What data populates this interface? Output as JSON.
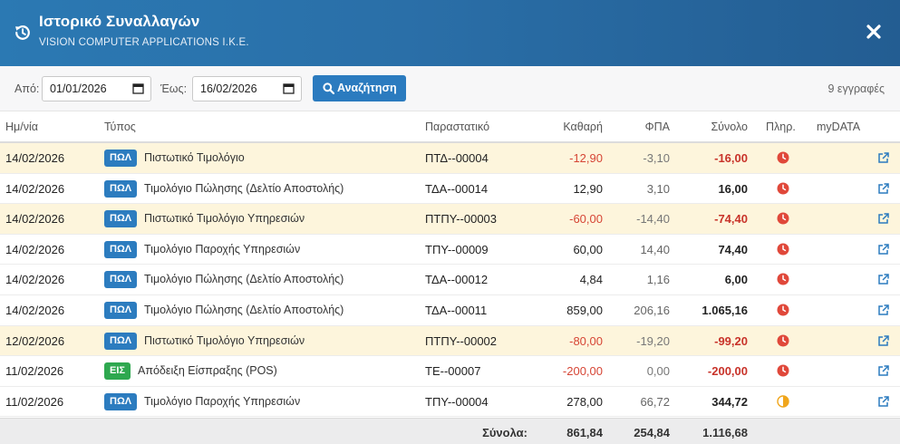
{
  "header": {
    "title": "Ιστορικό Συναλλαγών",
    "subtitle": "VISION COMPUTER APPLICATIONS I.K.E.",
    "icon": "history-icon",
    "close_icon": "close-icon"
  },
  "filters": {
    "from_label": "Από:",
    "from_value": "01/01/2026",
    "to_label": "Έως:",
    "to_value": "16/02/2026",
    "search_label": "Αναζήτηση",
    "records_count": "9 εγγραφές"
  },
  "columns": {
    "date": "Ημ/νία",
    "type": "Τύπος",
    "document": "Παραστατικό",
    "net": "Καθαρή",
    "vat": "ΦΠΑ",
    "total": "Σύνολο",
    "payment": "Πληρ.",
    "mydata": "myDATA"
  },
  "rows": [
    {
      "date": "14/02/2026",
      "badge": "ΠΩΛ",
      "type": "Πιστωτικό Τιμολόγιο",
      "document": "ΠΤΔ--00004",
      "net": "-12,90",
      "vat": "-3,10",
      "total": "-16,00",
      "payment_status": "unpaid",
      "negative": true
    },
    {
      "date": "14/02/2026",
      "badge": "ΠΩΛ",
      "type": "Τιμολόγιο Πώλησης (Δελτίο Αποστολής)",
      "document": "ΤΔΑ--00014",
      "net": "12,90",
      "vat": "3,10",
      "total": "16,00",
      "payment_status": "unpaid",
      "negative": false
    },
    {
      "date": "14/02/2026",
      "badge": "ΠΩΛ",
      "type": "Πιστωτικό Τιμολόγιο Υπηρεσιών",
      "document": "ΠΤΠΥ--00003",
      "net": "-60,00",
      "vat": "-14,40",
      "total": "-74,40",
      "payment_status": "unpaid",
      "negative": true
    },
    {
      "date": "14/02/2026",
      "badge": "ΠΩΛ",
      "type": "Τιμολόγιο Παροχής Υπηρεσιών",
      "document": "ΤΠΥ--00009",
      "net": "60,00",
      "vat": "14,40",
      "total": "74,40",
      "payment_status": "unpaid",
      "negative": false
    },
    {
      "date": "14/02/2026",
      "badge": "ΠΩΛ",
      "type": "Τιμολόγιο Πώλησης (Δελτίο Αποστολής)",
      "document": "ΤΔΑ--00012",
      "net": "4,84",
      "vat": "1,16",
      "total": "6,00",
      "payment_status": "unpaid",
      "negative": false
    },
    {
      "date": "14/02/2026",
      "badge": "ΠΩΛ",
      "type": "Τιμολόγιο Πώλησης (Δελτίο Αποστολής)",
      "document": "ΤΔΑ--00011",
      "net": "859,00",
      "vat": "206,16",
      "total": "1.065,16",
      "payment_status": "unpaid",
      "negative": false
    },
    {
      "date": "12/02/2026",
      "badge": "ΠΩΛ",
      "type": "Πιστωτικό Τιμολόγιο Υπηρεσιών",
      "document": "ΠΤΠΥ--00002",
      "net": "-80,00",
      "vat": "-19,20",
      "total": "-99,20",
      "payment_status": "unpaid",
      "negative": true
    },
    {
      "date": "11/02/2026",
      "badge": "ΕΙΣ",
      "type": "Απόδειξη Είσπραξης (POS)",
      "document": "ΤΕ--00007",
      "net": "-200,00",
      "vat": "0,00",
      "total": "-200,00",
      "payment_status": "unpaid",
      "negative": true
    },
    {
      "date": "11/02/2026",
      "badge": "ΠΩΛ",
      "type": "Τιμολόγιο Παροχής Υπηρεσιών",
      "document": "ΤΠΥ--00004",
      "net": "278,00",
      "vat": "66,72",
      "total": "344,72",
      "payment_status": "partial",
      "negative": false
    }
  ],
  "totals": {
    "label": "Σύνολα:",
    "net": "861,84",
    "vat": "254,84",
    "total": "1.116,68"
  },
  "colors": {
    "header_bg": "#2a6fa8",
    "primary": "#2b7bbf",
    "badge_sales": "#2c7cbf",
    "badge_receipt": "#2ea84f",
    "credit_row_bg": "#fdf5dc",
    "negative": "#d64535",
    "unpaid": "#e0483a",
    "partial": "#f0a61c"
  }
}
